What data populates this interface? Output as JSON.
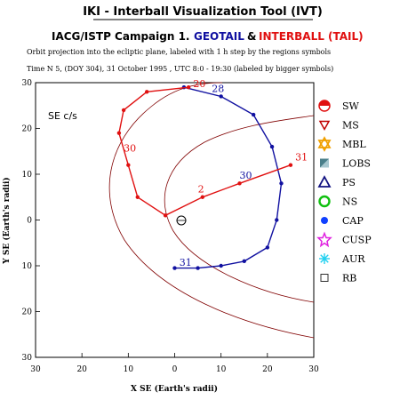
{
  "header": {
    "title": "IKI - Interball Visualization Tool (IVT)",
    "campaign": "IACG/ISTP Campaign 1.",
    "sat1": "GEOTAIL",
    "amp": "&",
    "sat2": "INTERBALL (TAIL)",
    "line3": "Orbit projection into the ecliptic plane, labeled with 1 h step by the regions symbols",
    "line4": "Time N 5, (DOY 304), 31 October  1995 ,  UTC 8:0 - 19:30 (labeled by bigger symbols)"
  },
  "colors": {
    "geotail": "#1010a0",
    "interball": "#e01010",
    "background": "#ffffff"
  },
  "chart_data": {
    "type": "scatter",
    "title": "IKI - Interball Visualization Tool (IVT)",
    "coord_label": "SE c/s",
    "xlabel": "X SE (Earth's radii)",
    "ylabel": "Y SE (Earth's radii)",
    "xlim": [
      30,
      -30
    ],
    "ylim": [
      -30,
      30
    ],
    "x_ticks": [
      30,
      20,
      10,
      0,
      -10,
      -20,
      -30
    ],
    "y_ticks": [
      -30,
      -20,
      -10,
      0,
      10,
      20,
      30
    ],
    "series": [
      {
        "name": "GEOTAIL",
        "color": "#1010a0",
        "points": [
          [
            -2,
            -29
          ],
          [
            -10,
            -27
          ],
          [
            -17,
            -23
          ],
          [
            -21,
            -16
          ],
          [
            -23,
            -8
          ],
          [
            -22,
            0
          ],
          [
            -20,
            6
          ],
          [
            -15,
            9
          ],
          [
            -10,
            10
          ],
          [
            -5,
            10.5
          ],
          [
            0,
            10.5
          ]
        ],
        "labels": [
          {
            "text": "28",
            "x": -8,
            "y": -28
          },
          {
            "text": "30",
            "x": -14,
            "y": -9
          },
          {
            "text": "31",
            "x": -1,
            "y": 10
          }
        ]
      },
      {
        "name": "INTERBALL (TAIL)",
        "color": "#e01010",
        "points": [
          [
            -3,
            -29
          ],
          [
            6,
            -28
          ],
          [
            11,
            -24
          ],
          [
            12,
            -19
          ],
          [
            10,
            -12
          ],
          [
            8,
            -5
          ],
          [
            2,
            -1
          ],
          [
            -6,
            -5
          ],
          [
            -14,
            -8
          ],
          [
            -25,
            -12
          ]
        ],
        "labels": [
          {
            "text": "20",
            "x": -4,
            "y": -29
          },
          {
            "text": "30",
            "x": 11,
            "y": -15
          },
          {
            "text": "2",
            "x": -5,
            "y": -6
          },
          {
            "text": "31",
            "x": -26,
            "y": -13
          }
        ]
      }
    ],
    "legend": {
      "placement": "right",
      "items": [
        {
          "label": "SW",
          "icon": "sw-symbol-icon",
          "color": "#e01010"
        },
        {
          "label": "MS",
          "icon": "ms-triangle-down-icon",
          "color": "#c00000"
        },
        {
          "label": "MBL",
          "icon": "mbl-star-icon",
          "color": "#f0a000"
        },
        {
          "label": "LOBS",
          "icon": "lobs-square-icon",
          "color": "#4a7f8a"
        },
        {
          "label": "PS",
          "icon": "ps-triangle-up-icon",
          "color": "#101080"
        },
        {
          "label": "NS",
          "icon": "ns-circle-icon",
          "color": "#10c010"
        },
        {
          "label": "CAP",
          "icon": "cap-dot-icon",
          "color": "#1040ff"
        },
        {
          "label": "CUSP",
          "icon": "cusp-star-icon",
          "color": "#e020e0"
        },
        {
          "label": "AUR",
          "icon": "aur-asterisk-icon",
          "color": "#20d0f0"
        },
        {
          "label": "RB",
          "icon": "rb-square-icon",
          "color": "#303030"
        }
      ]
    }
  }
}
